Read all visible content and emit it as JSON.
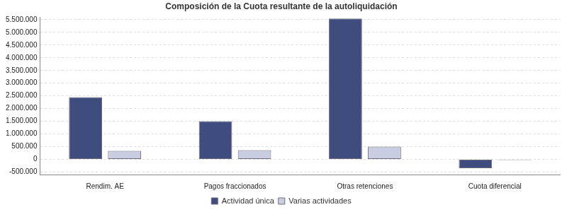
{
  "chart_data": {
    "type": "bar",
    "title": "Composición de la Cuota resultante de la autoliquidación",
    "categories": [
      "Rendim. AE",
      "Pagos fraccionados",
      "Otras retenciones",
      "Cuota diferencial"
    ],
    "series": [
      {
        "name": "Actividad única",
        "color": "#3e4d7e",
        "values": [
          2450000,
          1500000,
          5550000,
          -350000
        ]
      },
      {
        "name": "Varias actividades",
        "color": "#c9cde2",
        "values": [
          330000,
          360000,
          500000,
          -30000
        ]
      }
    ],
    "ylim": [
      -600000,
      5600000
    ],
    "yticks": [
      {
        "value": -500000,
        "label": "-500.000"
      },
      0,
      {
        "value": 500000,
        "label": "500.000"
      },
      {
        "value": 1000000,
        "label": "1.000.000"
      },
      {
        "value": 1500000,
        "label": "1.500.000"
      },
      {
        "value": 2000000,
        "label": "2.000.000"
      },
      {
        "value": 2500000,
        "label": "2.500.000"
      },
      {
        "value": 3000000,
        "label": "3.000.000"
      },
      {
        "value": 3500000,
        "label": "3.500.000"
      },
      {
        "value": 4000000,
        "label": "4.000.000"
      },
      {
        "value": 4500000,
        "label": "4.500.000"
      },
      {
        "value": 5000000,
        "label": "5.000.000"
      },
      {
        "value": 5500000,
        "label": "5.500.000"
      }
    ],
    "grid": true,
    "legend": "bottom"
  }
}
